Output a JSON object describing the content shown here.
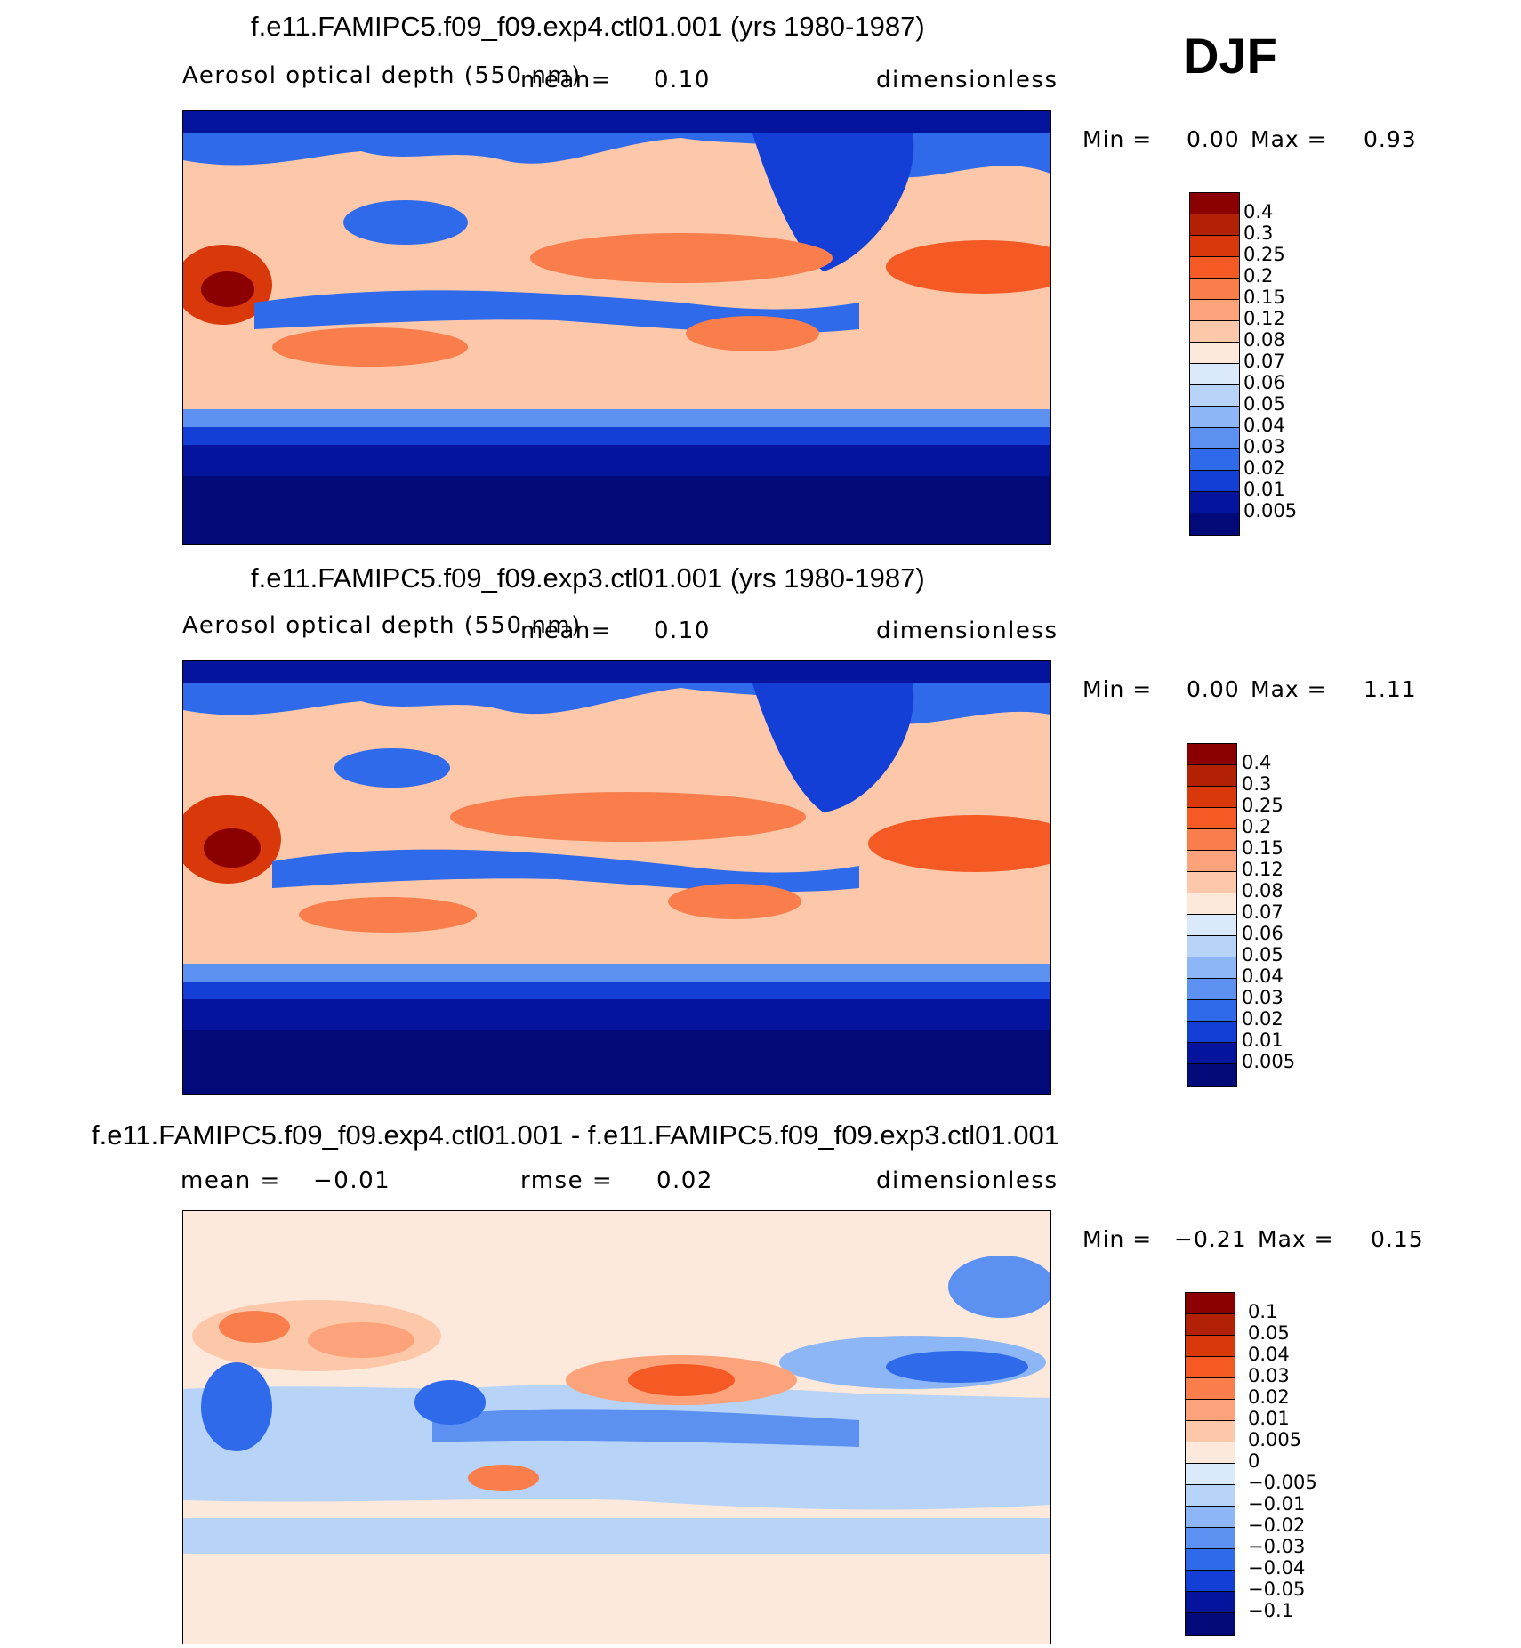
{
  "season": "DJF",
  "chart_data": [
    {
      "type": "heatmap",
      "title": "f.e11.FAMIPC5.f09_f09.exp4.ctl01.001 (yrs 1980-1987)",
      "variable": "Aerosol optical depth (550 nm)",
      "mean_label": "mean=",
      "mean": "0.10",
      "units": "dimensionless",
      "min_label": "Min =",
      "min": "0.00",
      "max_label": "Max =",
      "max": "0.93",
      "contour_levels": [
        "0.4",
        "0.3",
        "0.25",
        "0.2",
        "0.15",
        "0.12",
        "0.08",
        "0.07",
        "0.06",
        "0.05",
        "0.04",
        "0.03",
        "0.02",
        "0.01",
        "0.005"
      ],
      "colors": [
        "#8b0000",
        "#b32105",
        "#d9380b",
        "#f55a25",
        "#fa7d4c",
        "#fca37c",
        "#fdc8a9",
        "#fde9dc",
        "#dbeafa",
        "#b8d3f8",
        "#8db6f6",
        "#5c91f2",
        "#2f6aeb",
        "#143fd6",
        "#05149c",
        "#020a7a"
      ]
    },
    {
      "type": "heatmap",
      "title": "f.e11.FAMIPC5.f09_f09.exp3.ctl01.001 (yrs 1980-1987)",
      "variable": "Aerosol optical depth (550 nm)",
      "mean_label": "mean=",
      "mean": "0.10",
      "units": "dimensionless",
      "min_label": "Min =",
      "min": "0.00",
      "max_label": "Max =",
      "max": "1.11",
      "contour_levels": [
        "0.4",
        "0.3",
        "0.25",
        "0.2",
        "0.15",
        "0.12",
        "0.08",
        "0.07",
        "0.06",
        "0.05",
        "0.04",
        "0.03",
        "0.02",
        "0.01",
        "0.005"
      ],
      "colors": [
        "#8b0000",
        "#b32105",
        "#d9380b",
        "#f55a25",
        "#fa7d4c",
        "#fca37c",
        "#fdc8a9",
        "#fde9dc",
        "#dbeafa",
        "#b8d3f8",
        "#8db6f6",
        "#5c91f2",
        "#2f6aeb",
        "#143fd6",
        "#05149c",
        "#020a7a"
      ]
    },
    {
      "type": "heatmap",
      "title": "f.e11.FAMIPC5.f09_f09.exp4.ctl01.001 - f.e11.FAMIPC5.f09_f09.exp3.ctl01.001",
      "mean_label": "mean =",
      "mean": "−0.01",
      "rmse_label": "rmse =",
      "rmse": "0.02",
      "units": "dimensionless",
      "min_label": "Min =",
      "min": "−0.21",
      "max_label": "Max =",
      "max": "0.15",
      "contour_levels": [
        "0.1",
        "0.05",
        "0.04",
        "0.03",
        "0.02",
        "0.01",
        "0.005",
        "0",
        "−0.005",
        "−0.01",
        "−0.02",
        "−0.03",
        "−0.04",
        "−0.05",
        "−0.1"
      ],
      "colors": [
        "#8b0000",
        "#b32105",
        "#d9380b",
        "#f55a25",
        "#fa7d4c",
        "#fca37c",
        "#fdc8a9",
        "#fde9dc",
        "#dbeafa",
        "#b8d3f8",
        "#8db6f6",
        "#5c91f2",
        "#2f6aeb",
        "#143fd6",
        "#05149c",
        "#020a7a"
      ]
    }
  ]
}
